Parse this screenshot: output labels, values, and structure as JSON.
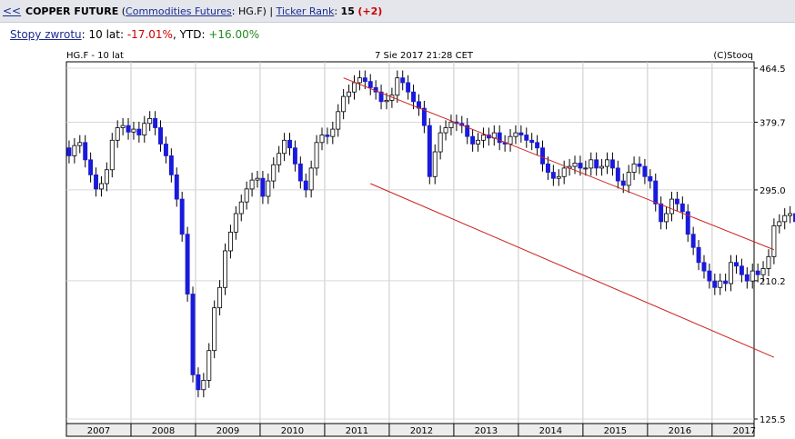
{
  "header": {
    "back": "<<",
    "name": "COPPER FUTURE",
    "category": "Commodities Futures",
    "ticker_sep": ": HG.F)",
    "rank_label": "Ticker Rank",
    "rank_value": "15",
    "rank_change": "(+2)"
  },
  "returns": {
    "label": "Stopy zwrotu",
    "ten_year_prefix": ": 10 lat: ",
    "ten_year_value": "-17.01%",
    "ytd_prefix": ", YTD: ",
    "ytd_value": "+16.00%"
  },
  "chart_data": {
    "type": "candlestick",
    "title": "HG.F - 10 lat",
    "timestamp": "7 Sie 2017 21:28 CET",
    "source": "(C)Stooq",
    "y_scale": "log",
    "ylim": [
      125.5,
      464.5
    ],
    "y_ticks": [
      464.5,
      379.7,
      295.0,
      210.2,
      125.5
    ],
    "y_tick_labels": [
      "464.5",
      "379.7",
      "295.0",
      "210.2",
      "125.5"
    ],
    "x_labels": [
      "2007",
      "2008",
      "2009",
      "2010",
      "2011",
      "2012",
      "2013",
      "2014",
      "2015",
      "2016",
      "2017"
    ],
    "colors": {
      "up": "#ffffff",
      "down": "#1a1adb",
      "outline": "#000000",
      "channel": "#cc2222"
    },
    "channel": {
      "upper": [
        [
          "2011-04",
          448
        ],
        [
          "2017-12",
          236
        ]
      ],
      "lower": [
        [
          "2011-09",
          302
        ],
        [
          "2017-12",
          158
        ]
      ]
    },
    "closes": [
      335,
      348,
      352,
      330,
      312,
      296,
      302,
      318,
      355,
      372,
      375,
      366,
      370,
      362,
      378,
      385,
      372,
      350,
      335,
      312,
      285,
      250,
      200,
      148,
      140,
      145,
      162,
      190,
      205,
      235,
      252,
      270,
      282,
      296,
      306,
      308,
      288,
      305,
      324,
      338,
      355,
      345,
      325,
      305,
      295,
      320,
      352,
      362,
      360,
      370,
      395,
      418,
      425,
      440,
      448,
      442,
      432,
      425,
      410,
      412,
      420,
      448,
      440,
      425,
      410,
      400,
      375,
      310,
      340,
      365,
      372,
      380,
      378,
      375,
      360,
      350,
      355,
      362,
      358,
      365,
      352,
      350,
      360,
      365,
      362,
      355,
      352,
      345,
      325,
      315,
      308,
      310,
      320,
      322,
      326,
      320,
      320,
      330,
      320,
      322,
      330,
      320,
      305,
      300,
      315,
      325,
      322,
      310,
      305,
      280,
      262,
      270,
      285,
      280,
      272,
      250,
      238,
      225,
      218,
      210,
      205,
      210,
      208,
      225,
      222,
      215,
      210,
      218,
      215,
      220,
      230,
      258,
      262,
      268,
      270,
      262,
      258,
      268,
      262,
      275,
      282,
      295
    ]
  }
}
